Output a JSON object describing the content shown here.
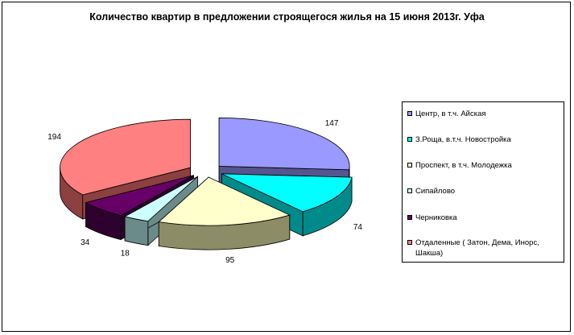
{
  "chart_data": {
    "type": "pie",
    "variant": "3d-exploded",
    "title": "Количество квартир в предложении строящегося жилья на 15 июня 2013г. Уфа",
    "legend_position": "right",
    "slices": [
      {
        "label": "Центр, в т.ч. Айская",
        "value": 147,
        "color": "#9999ff",
        "side_color": "#55558f"
      },
      {
        "label": "З.Роща, в.т.ч. Новостройка",
        "value": 74,
        "color": "#00ffff",
        "side_color": "#008a8a"
      },
      {
        "label": "Проспект, в т.ч. Молодежка",
        "value": 95,
        "color": "#ffffcc",
        "side_color": "#8c8c66"
      },
      {
        "label": "Сипайлово",
        "value": 18,
        "color": "#ccffff",
        "side_color": "#6b8a8a"
      },
      {
        "label": "Черниковка",
        "value": 34,
        "color": "#660066",
        "side_color": "#2e002e"
      },
      {
        "label": "Отдаленные ( Затон, Дема, Инорс, Шакша)",
        "value": 194,
        "color": "#ff8080",
        "side_color": "#8c4040"
      }
    ]
  }
}
